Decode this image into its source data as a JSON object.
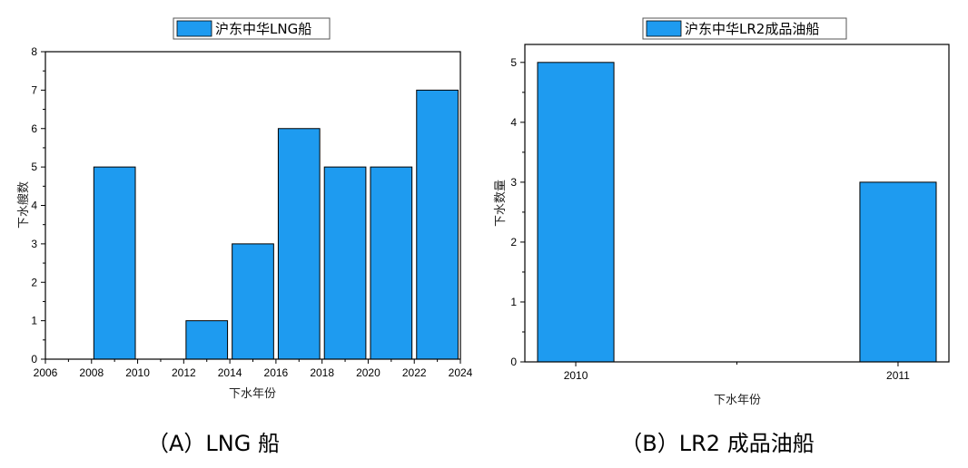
{
  "chart_data": [
    {
      "type": "bar",
      "legend": "沪东中华LNG船",
      "xlabel": "下水年份",
      "ylabel": "下水艘数",
      "caption": "（A）LNG 船",
      "xlim": [
        2006,
        2024
      ],
      "ylim": [
        0,
        8
      ],
      "x_ticks": [
        2006,
        2008,
        2010,
        2012,
        2014,
        2016,
        2018,
        2020,
        2022,
        2024
      ],
      "y_ticks": [
        0,
        1,
        2,
        3,
        4,
        5,
        6,
        7,
        8
      ],
      "bar_width": 1.8,
      "bars": [
        {
          "x": 2009,
          "y": 5
        },
        {
          "x": 2013,
          "y": 1
        },
        {
          "x": 2015,
          "y": 3
        },
        {
          "x": 2017,
          "y": 6
        },
        {
          "x": 2019,
          "y": 5
        },
        {
          "x": 2021,
          "y": 5
        },
        {
          "x": 2023,
          "y": 7
        }
      ],
      "bar_color": "#1E9BF0"
    },
    {
      "type": "bar",
      "legend": "沪东中华LR2成品油船",
      "xlabel": "下水年份",
      "ylabel": "下水数量",
      "caption": "（B）LR2 成品油船",
      "categories": [
        "2010",
        "2011"
      ],
      "values": [
        5,
        3
      ],
      "ylim": [
        0,
        5.3
      ],
      "y_ticks": [
        0,
        1,
        2,
        3,
        4,
        5
      ],
      "bar_color": "#1E9BF0"
    }
  ]
}
